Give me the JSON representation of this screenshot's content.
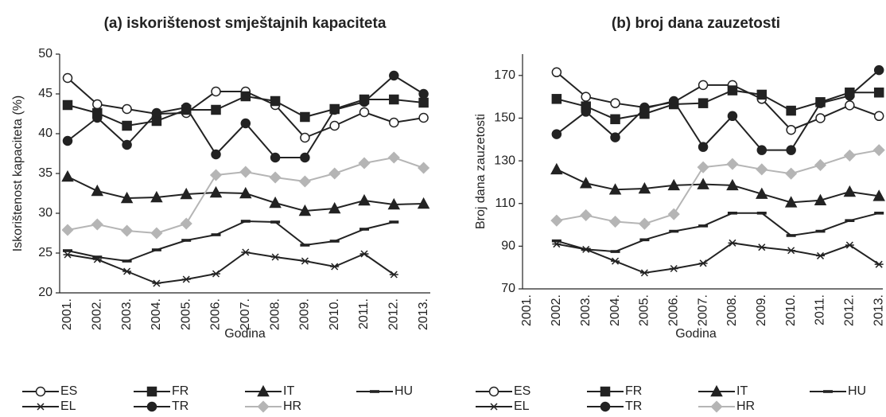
{
  "chart_data": [
    {
      "type": "line",
      "title": "(a) iskorištenost smještajnih kapaciteta",
      "x_label": "Godina",
      "y_label": "Iskorištenost kapaciteta (%)",
      "categories": [
        "2001.",
        "2002.",
        "2003.",
        "2004.",
        "2005.",
        "2006.",
        "2007.",
        "2008.",
        "2009.",
        "2010.",
        "2011.",
        "2012.",
        "2013."
      ],
      "ylim": [
        20,
        50
      ],
      "yticks": [
        20,
        25,
        30,
        35,
        40,
        45,
        50
      ],
      "series": [
        {
          "name": "ES",
          "color": "#222222",
          "marker": "open-circle",
          "values": [
            47,
            43.7,
            43.1,
            42.5,
            42.6,
            45.3,
            45.3,
            43.6,
            39.5,
            41,
            42.7,
            41.4,
            42
          ]
        },
        {
          "name": "FR",
          "color": "#222222",
          "marker": "square",
          "values": [
            43.6,
            42.6,
            41,
            41.6,
            43,
            43,
            44.7,
            44.1,
            42.1,
            43.1,
            44.3,
            44.3,
            43.9
          ]
        },
        {
          "name": "IT",
          "color": "#222222",
          "marker": "triangle",
          "values": [
            34.6,
            32.8,
            31.9,
            32,
            32.4,
            32.6,
            32.5,
            31.3,
            30.3,
            30.6,
            31.6,
            31.1,
            31.2
          ]
        },
        {
          "name": "HU",
          "color": "#222222",
          "marker": "dash",
          "values": [
            25.3,
            24.5,
            24,
            25.4,
            26.6,
            27.3,
            29,
            28.9,
            26,
            26.5,
            28,
            28.9,
            null
          ]
        },
        {
          "name": "EL",
          "color": "#222222",
          "marker": "star",
          "values": [
            24.8,
            24.2,
            22.7,
            21.2,
            21.7,
            22.4,
            25.1,
            24.5,
            24,
            23.3,
            24.9,
            22.3,
            null
          ]
        },
        {
          "name": "TR",
          "color": "#222222",
          "marker": "circle",
          "values": [
            39.1,
            42,
            38.6,
            42.6,
            43.3,
            37.4,
            41.3,
            37,
            37,
            43,
            44,
            47.3,
            45
          ]
        },
        {
          "name": "HR",
          "color": "#b5b5b5",
          "marker": "diamond",
          "values": [
            27.9,
            28.6,
            27.8,
            27.5,
            28.7,
            34.8,
            35.2,
            34.5,
            34,
            35,
            36.3,
            37,
            35.7
          ]
        }
      ]
    },
    {
      "type": "line",
      "title": "(b) broj dana zauzetosti",
      "x_label": "Godina",
      "y_label": "Broj dana zauzetosti",
      "categories": [
        "2001.",
        "2002.",
        "2003.",
        "2004.",
        "2005.",
        "2006.",
        "2007.",
        "2008.",
        "2009.",
        "2010.",
        "2011.",
        "2012.",
        "2013."
      ],
      "ylim": [
        70,
        180
      ],
      "yticks": [
        70,
        90,
        110,
        130,
        150,
        170
      ],
      "series": [
        {
          "name": "ES",
          "color": "#222222",
          "marker": "open-circle",
          "values": [
            null,
            171.5,
            160,
            157,
            155,
            157.5,
            165.5,
            165.5,
            159,
            144.5,
            150,
            156,
            151
          ]
        },
        {
          "name": "FR",
          "color": "#222222",
          "marker": "square",
          "values": [
            null,
            159,
            155.5,
            149.5,
            152,
            156.5,
            157,
            163,
            161,
            153.5,
            157.5,
            162,
            162
          ]
        },
        {
          "name": "IT",
          "color": "#222222",
          "marker": "triangle",
          "values": [
            null,
            126,
            119.5,
            116.5,
            117,
            118.5,
            119,
            118.5,
            114.5,
            110.5,
            111.5,
            115.5,
            113.5
          ]
        },
        {
          "name": "HU",
          "color": "#222222",
          "marker": "dash",
          "values": [
            null,
            92.5,
            88.5,
            87.5,
            93,
            97,
            99.5,
            105.5,
            105.5,
            95,
            97,
            102,
            105.5
          ]
        },
        {
          "name": "EL",
          "color": "#222222",
          "marker": "star",
          "values": [
            null,
            91,
            88.5,
            83,
            77.5,
            79.5,
            82,
            91.5,
            89.5,
            88,
            85.5,
            90.5,
            81.5
          ]
        },
        {
          "name": "TR",
          "color": "#222222",
          "marker": "circle",
          "values": [
            null,
            142.5,
            153,
            141,
            154.5,
            158,
            136.5,
            151,
            135,
            135,
            157,
            160.5,
            172.5
          ]
        },
        {
          "name": "HR",
          "color": "#b5b5b5",
          "marker": "diamond",
          "values": [
            null,
            102,
            104.5,
            101.5,
            100.5,
            105,
            127,
            128.5,
            126,
            124,
            128,
            132.5,
            135
          ]
        }
      ]
    }
  ]
}
